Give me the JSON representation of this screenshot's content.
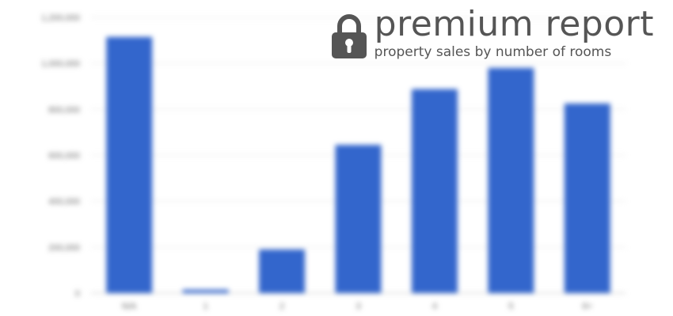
{
  "chart_data": {
    "type": "bar",
    "categories": [
      "N/A",
      "1",
      "2",
      "3",
      "4",
      "5",
      "6+"
    ],
    "values": [
      1115000,
      15000,
      190000,
      645000,
      888000,
      980000,
      825000
    ],
    "yticks": [
      0,
      200000,
      400000,
      600000,
      800000,
      1000000,
      1200000
    ],
    "ytick_labels": [
      "0",
      "200,000",
      "400,000",
      "600,000",
      "800,000",
      "1,000,000",
      "1,200,000"
    ],
    "ylim": [
      0,
      1200000
    ],
    "grid": true,
    "bar_color": "#3366cc"
  },
  "premium": {
    "title": "premium report",
    "subtitle": "property sales by number of rooms",
    "icon": "lock-icon"
  },
  "colors": {
    "badge_text": "#555555"
  }
}
